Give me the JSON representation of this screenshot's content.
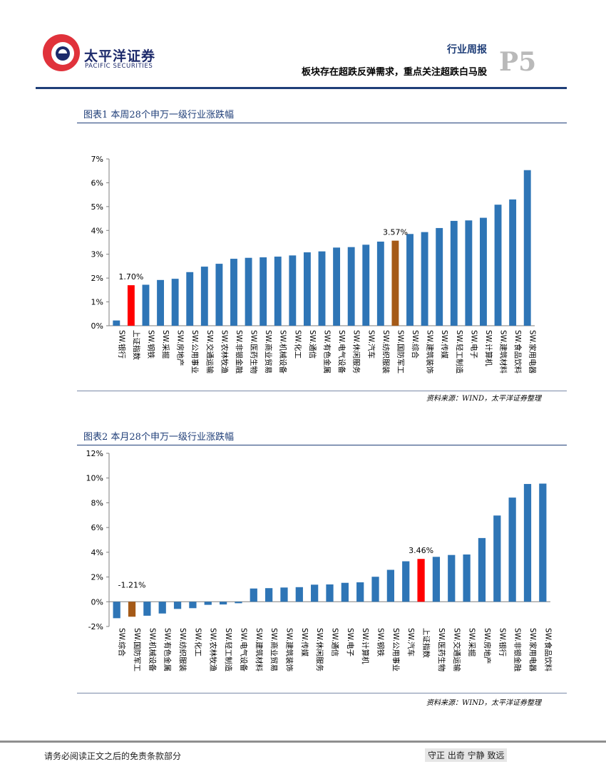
{
  "header": {
    "brand_cn": "太平洋证券",
    "brand_en": "PACIFIC SECURITIES",
    "report_type": "行业周报",
    "subtitle": "板块存在超跌反弹需求，重点关注超跌白马股",
    "page_number": "P5"
  },
  "colors": {
    "default_bar": "#2e75b6",
    "index_bar": "#ff0000",
    "focus_bar": "#a55a18",
    "brand_navy": "#1f3e78",
    "logo_red": "#e0323b"
  },
  "chart_data": [
    {
      "id": "chart1",
      "type": "bar",
      "title": "图表1 本周28个申万一级行业涨跌幅",
      "source": "资料来源：WIND，太平洋证券整理",
      "ylim": [
        0,
        7
      ],
      "yticks": [
        0,
        1,
        2,
        3,
        4,
        5,
        6,
        7
      ],
      "ytick_labels": [
        "0%",
        "1%",
        "2%",
        "3%",
        "4%",
        "5%",
        "6%",
        "7%"
      ],
      "categories": [
        "SW.银行",
        "上证指数",
        "SW.钢铁",
        "SW.采掘",
        "SW.房地产",
        "SW.公用事业",
        "SW.交通运输",
        "SW.农林牧渔",
        "SW.非银金融",
        "SW.医药生物",
        "SW.商业贸易",
        "SW.机械设备",
        "SW.化工",
        "SW.通信",
        "SW.有色金属",
        "SW.电气设备",
        "SW.休闲服务",
        "SW.汽车",
        "SW.纺织服装",
        "SW.国防军工",
        "SW.综合",
        "SW.建筑装饰",
        "SW.传媒",
        "SW.轻工制造",
        "SW.电子",
        "SW.计算机",
        "SW.建筑材料",
        "SW.食品饮料",
        "SW.家用电器"
      ],
      "values": [
        0.22,
        1.7,
        1.72,
        1.92,
        1.97,
        2.25,
        2.48,
        2.6,
        2.81,
        2.85,
        2.87,
        2.9,
        2.95,
        3.08,
        3.12,
        3.28,
        3.3,
        3.4,
        3.53,
        3.57,
        3.85,
        3.93,
        4.1,
        4.4,
        4.42,
        4.53,
        5.08,
        5.3,
        6.53
      ],
      "bar_colors": [
        "default",
        "index",
        "default",
        "default",
        "default",
        "default",
        "default",
        "default",
        "default",
        "default",
        "default",
        "default",
        "default",
        "default",
        "default",
        "default",
        "default",
        "default",
        "default",
        "focus",
        "default",
        "default",
        "default",
        "default",
        "default",
        "default",
        "default",
        "default",
        "default"
      ],
      "annotations": [
        {
          "index": 1,
          "label": "1.70%"
        },
        {
          "index": 19,
          "label": "3.57%"
        }
      ]
    },
    {
      "id": "chart2",
      "type": "bar",
      "title": "图表2 本月28个申万一级行业涨跌幅",
      "source": "资料来源：WIND，太平洋证券整理",
      "ylim": [
        -2,
        12
      ],
      "yticks": [
        -2,
        0,
        2,
        4,
        6,
        8,
        10,
        12
      ],
      "ytick_labels": [
        "-2%",
        "0%",
        "2%",
        "4%",
        "6%",
        "8%",
        "10%",
        "12%"
      ],
      "categories": [
        "SW.综合",
        "SW.国防军工",
        "SW.机械设备",
        "SW.有色金属",
        "SW.纺织服装",
        "SW.化工",
        "SW.农林牧渔",
        "SW.轻工制造",
        "SW.电气设备",
        "SW.建筑材料",
        "SW.商业贸易",
        "SW.建筑装饰",
        "SW.传媒",
        "SW.休闲服务",
        "SW.通信",
        "SW.电子",
        "SW.计算机",
        "SW.钢铁",
        "SW.公用事业",
        "SW.汽车",
        "上证指数",
        "SW.医药生物",
        "SW.交通运输",
        "SW.采掘",
        "SW.房地产",
        "SW.银行",
        "SW.非银金融",
        "SW.家用电器",
        "SW.食品饮料"
      ],
      "values": [
        -1.33,
        -1.21,
        -1.13,
        -0.95,
        -0.58,
        -0.52,
        -0.25,
        -0.22,
        -0.12,
        1.07,
        1.1,
        1.15,
        1.18,
        1.38,
        1.4,
        1.53,
        1.57,
        2.02,
        2.58,
        3.27,
        3.46,
        3.63,
        3.78,
        3.82,
        5.15,
        6.97,
        8.42,
        9.52,
        9.55
      ],
      "bar_colors": [
        "default",
        "focus",
        "default",
        "default",
        "default",
        "default",
        "default",
        "default",
        "default",
        "default",
        "default",
        "default",
        "default",
        "default",
        "default",
        "default",
        "default",
        "default",
        "default",
        "default",
        "index",
        "default",
        "default",
        "default",
        "default",
        "default",
        "default",
        "default",
        "default"
      ],
      "annotations": [
        {
          "index": 1,
          "label": "-1.21%"
        },
        {
          "index": 20,
          "label": "3.46%"
        }
      ]
    }
  ],
  "footer": {
    "disclaimer": "请务必阅读正文之后的免责条款部分",
    "motto": "守正 出奇 宁静 致远"
  }
}
